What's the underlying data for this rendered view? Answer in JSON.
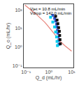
{
  "chart_data": {
    "type": "scatter",
    "log": true,
    "grid": false,
    "xlabel": "Q_d (mL/hr)",
    "ylabel": "Q_o (mL/hr)",
    "xlim": [
      0.08,
      12
    ],
    "ylim": [
      0.08,
      200
    ],
    "xticks": [
      {
        "value": 0.1,
        "label": "10⁻¹"
      },
      {
        "value": 1,
        "label": "10⁰"
      },
      {
        "value": 10,
        "label": "10¹"
      }
    ],
    "yticks": [
      {
        "value": 0.1,
        "label": "10⁻¹"
      },
      {
        "value": 1,
        "label": "10⁰"
      },
      {
        "value": 10,
        "label": "10¹"
      },
      {
        "value": 100,
        "label": "10²"
      }
    ],
    "annotations": [
      "V̇jet = 10.8 mL/min",
      "V̇drop = 142.0 mL/min"
    ],
    "series": [
      {
        "type": "line",
        "color": "#e8837a",
        "x": [
          0.09,
          0.1,
          0.12,
          0.15,
          0.2,
          0.28,
          0.38,
          0.5,
          0.65,
          0.82,
          1.0,
          1.2,
          1.5,
          1.8,
          2.2,
          2.8,
          3.5,
          5.0,
          7.0,
          10.0
        ],
        "values": [
          180,
          160,
          130,
          105,
          80,
          58,
          42,
          30,
          22,
          16,
          12,
          9.0,
          6.5,
          4.8,
          3.5,
          2.5,
          1.8,
          1.2,
          0.85,
          0.6
        ]
      },
      {
        "type": "scatter",
        "marker": "square",
        "color": "#3355cc",
        "x": [
          1.5,
          1.8,
          2.0,
          2.2,
          2.3,
          2.4,
          2.5,
          2.6,
          2.7,
          2.8
        ],
        "values": [
          50,
          35,
          25,
          17,
          12,
          8,
          5.5,
          3.5,
          2.2,
          1.4
        ]
      },
      {
        "type": "scatter",
        "marker": "square",
        "color": "#00ccee",
        "x": [
          1.2,
          1.5,
          1.8,
          2.0,
          2.2,
          2.3,
          2.4
        ],
        "values": [
          40,
          22,
          12,
          6.5,
          3.5,
          2.0,
          1.2
        ]
      },
      {
        "type": "scatter",
        "marker": "square",
        "color": "#111111",
        "x": [
          2.0,
          2.3,
          2.5,
          2.7,
          2.9,
          3.0,
          3.1,
          3.2
        ],
        "values": [
          45,
          28,
          18,
          11,
          7,
          4.2,
          2.5,
          1.5
        ]
      }
    ]
  }
}
